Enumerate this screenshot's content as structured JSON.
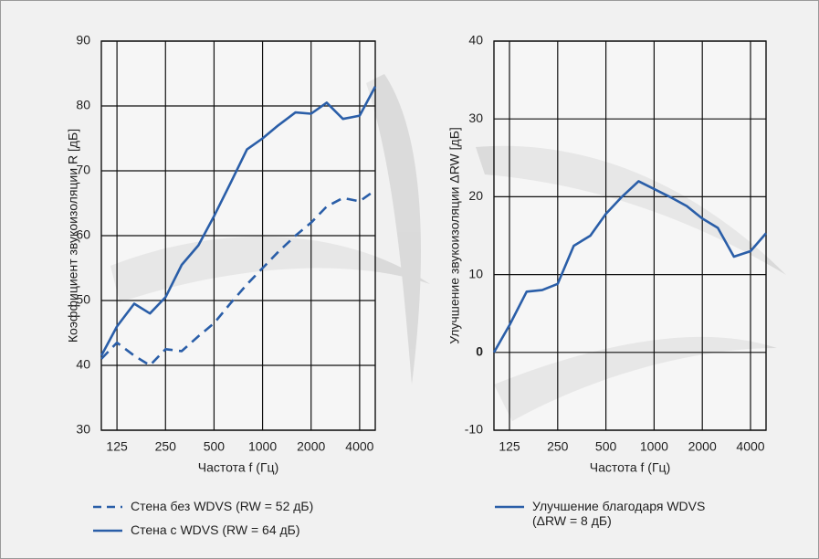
{
  "chart_data": [
    {
      "type": "line",
      "x_label": "Частота f (Гц)",
      "y_label": "Коэффициент звукоизоляции R [дБ]",
      "x": [
        100,
        125,
        160,
        200,
        250,
        315,
        400,
        500,
        630,
        800,
        1000,
        1250,
        1600,
        2000,
        2500,
        3150,
        4000,
        5000
      ],
      "xscale": "log",
      "xlim": [
        100,
        5000
      ],
      "xticks": [
        125,
        250,
        500,
        1000,
        2000,
        4000
      ],
      "ylim": [
        30,
        90
      ],
      "yticks": [
        30,
        40,
        50,
        60,
        70,
        80,
        90
      ],
      "grid": true,
      "series": [
        {
          "name": "Стена без WDVS (RW = 52 дБ)",
          "color": "#2a5ea8",
          "style": "dashed",
          "values": [
            41,
            43.5,
            41.5,
            40,
            42.5,
            42.2,
            44.5,
            46.5,
            49.5,
            52.5,
            55,
            57.5,
            60,
            62,
            64.5,
            65.8,
            65.3,
            67
          ]
        },
        {
          "name": "Стена с WDVS (RW = 64 дБ)",
          "color": "#2a5ea8",
          "style": "solid",
          "values": [
            41.5,
            46,
            49.5,
            48,
            50.5,
            55.5,
            58.5,
            63,
            68,
            73.3,
            75,
            77,
            79,
            78.8,
            80.5,
            78,
            78.5,
            83
          ]
        }
      ]
    },
    {
      "type": "line",
      "x_label": "Частота f (Гц)",
      "y_label": "Улучшение звукоизоляции    ΔRW [дБ]",
      "x": [
        100,
        125,
        160,
        200,
        250,
        315,
        400,
        500,
        630,
        800,
        1000,
        1250,
        1600,
        2000,
        2500,
        3150,
        4000,
        5000
      ],
      "xscale": "log",
      "xlim": [
        100,
        5000
      ],
      "xticks": [
        125,
        250,
        500,
        1000,
        2000,
        4000
      ],
      "ylim": [
        -10,
        40
      ],
      "yticks": [
        -10,
        0,
        10,
        20,
        30,
        40
      ],
      "grid": true,
      "series": [
        {
          "name": "Улучшение благодаря WDVS (ΔRW = 8 дБ)",
          "color": "#2a5ea8",
          "style": "solid",
          "values": [
            0,
            3.5,
            7.8,
            8,
            8.8,
            13.7,
            15,
            17.8,
            20,
            22,
            21,
            20,
            18.8,
            17.2,
            16,
            12.3,
            13,
            15.3
          ]
        }
      ]
    }
  ]
}
